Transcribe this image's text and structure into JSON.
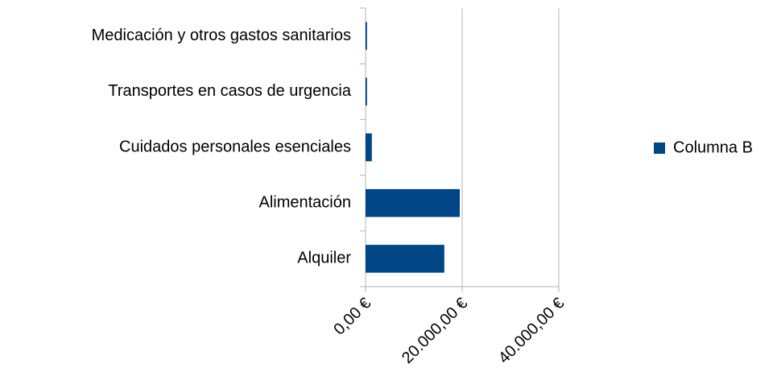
{
  "chart_data": {
    "type": "bar",
    "orientation": "horizontal",
    "categories": [
      "Alquiler",
      "Alimentación",
      "Cuidados personales esenciales",
      "Transportes en casos de urgencia",
      "Medicación y otros gastos sanitarios"
    ],
    "series": [
      {
        "name": "Columna B",
        "color": "#004586",
        "values": [
          16300,
          19500,
          1300,
          300,
          300
        ]
      }
    ],
    "xlim": [
      0,
      40000
    ],
    "xticks": [
      {
        "value": 0,
        "label": "0,00 €"
      },
      {
        "value": 20000,
        "label": "20.000,00 €"
      },
      {
        "value": 40000,
        "label": "40.000,00 €"
      }
    ],
    "grid": true,
    "legend": "right"
  }
}
